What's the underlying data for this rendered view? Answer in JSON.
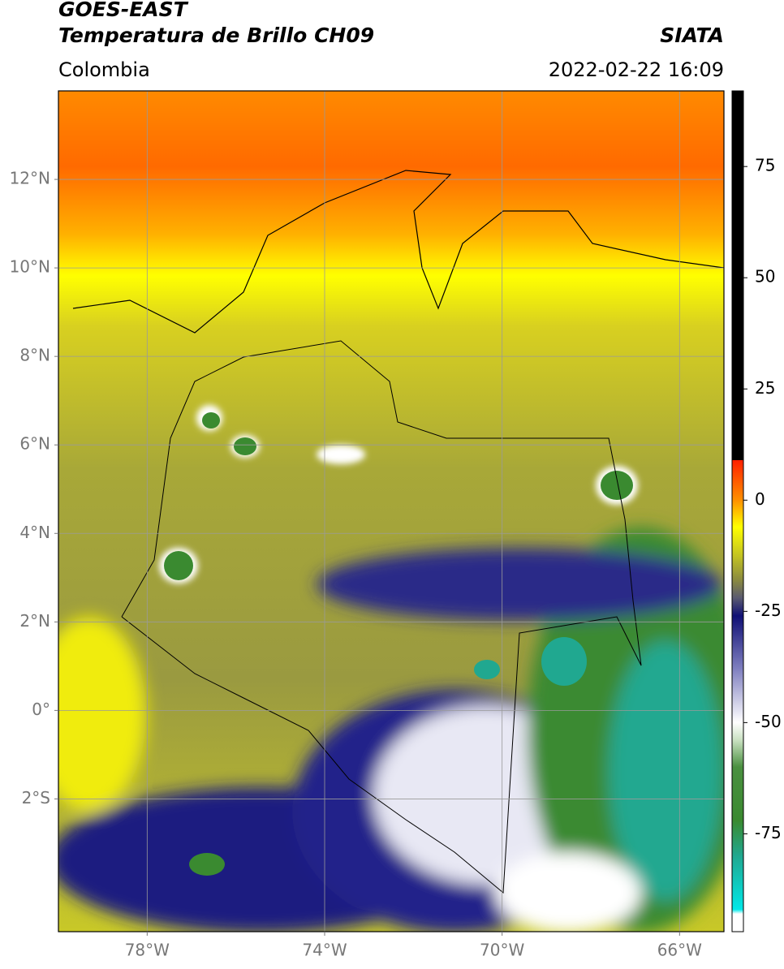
{
  "header": {
    "title": "GOES-EAST",
    "subtitle": "Temperatura de Brillo CH09",
    "source": "SIATA",
    "region": "Colombia",
    "datetime": "2022-02-22 16:09"
  },
  "map": {
    "xlim": [
      -80,
      -65
    ],
    "ylim": [
      -5,
      14
    ],
    "grid": true,
    "xticks": [
      {
        "value": -78,
        "label": "78°W"
      },
      {
        "value": -74,
        "label": "74°W"
      },
      {
        "value": -70,
        "label": "70°W"
      },
      {
        "value": -66,
        "label": "66°W"
      }
    ],
    "yticks": [
      {
        "value": -2,
        "label": "2°S"
      },
      {
        "value": 0,
        "label": "0°"
      },
      {
        "value": 2,
        "label": "2°N"
      },
      {
        "value": 4,
        "label": "4°N"
      },
      {
        "value": 6,
        "label": "6°N"
      },
      {
        "value": 8,
        "label": "8°N"
      },
      {
        "value": 10,
        "label": "10°N"
      },
      {
        "value": 12,
        "label": "12°N"
      }
    ]
  },
  "colorbar": {
    "clim": [
      -97,
      92
    ],
    "ticks": [
      -75,
      -50,
      -25,
      0,
      25,
      50,
      75
    ],
    "stops": [
      {
        "value": 92,
        "color": "#000000"
      },
      {
        "value": 9,
        "color": "#000000"
      },
      {
        "value": 9,
        "color": "#ff2000"
      },
      {
        "value": 0,
        "color": "#ff9000"
      },
      {
        "value": -6,
        "color": "#ffff00"
      },
      {
        "value": -12,
        "color": "#c8c820"
      },
      {
        "value": -18,
        "color": "#8a8a40"
      },
      {
        "value": -22,
        "color": "#5a5a70"
      },
      {
        "value": -26,
        "color": "#101075"
      },
      {
        "value": -38,
        "color": "#8080c0"
      },
      {
        "value": -50,
        "color": "#ffffff"
      },
      {
        "value": -54,
        "color": "#c8e0c0"
      },
      {
        "value": -60,
        "color": "#4a9040"
      },
      {
        "value": -72,
        "color": "#3a8a30"
      },
      {
        "value": -80,
        "color": "#20a890"
      },
      {
        "value": -92,
        "color": "#00e8e8"
      },
      {
        "value": -93,
        "color": "#ffffff"
      },
      {
        "value": -97,
        "color": "#ffffff"
      }
    ]
  }
}
